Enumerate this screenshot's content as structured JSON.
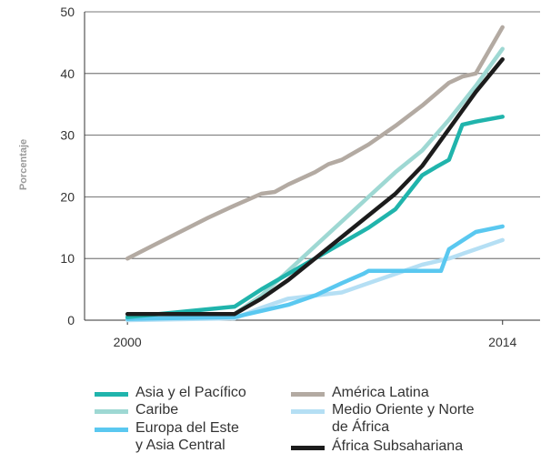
{
  "chart_data": {
    "type": "line",
    "title": "",
    "xlabel": "",
    "ylabel": "Porcentaje",
    "xlim": [
      1998.4,
      2015.4
    ],
    "ylim": [
      0,
      50
    ],
    "yticks": [
      0,
      10,
      20,
      30,
      40,
      50
    ],
    "xtick_labels": [
      {
        "x": 2000,
        "label": "2000"
      },
      {
        "x": 2014,
        "label": "2014"
      }
    ],
    "grid": "horizontal",
    "legend_position": "bottom",
    "series": [
      {
        "name": "Asia y el Pacífico",
        "color": "#20b4ac",
        "x": [
          2000,
          2004,
          2005,
          2006,
          2007,
          2008,
          2009,
          2010,
          2011,
          2011.5,
          2012,
          2012.5,
          2013,
          2014
        ],
        "y": [
          0.5,
          2.2,
          5.0,
          7.5,
          10.0,
          12.5,
          15.0,
          18.0,
          23.5,
          24.8,
          26.0,
          31.7,
          32.2,
          33.0
        ]
      },
      {
        "name": "Caribe",
        "color": "#9ed8d3",
        "x": [
          2000,
          2004,
          2005,
          2006,
          2007,
          2008,
          2009,
          2010,
          2011,
          2012,
          2013,
          2014
        ],
        "y": [
          0.2,
          1.0,
          4.0,
          8.0,
          12.0,
          16.0,
          20.0,
          24.0,
          27.5,
          32.5,
          38.0,
          44.0
        ]
      },
      {
        "name": "Europa del Este\n  y Asia Central",
        "color": "#5ac8f0",
        "x": [
          2000,
          2004,
          2005,
          2006,
          2007,
          2008,
          2008.8,
          2009,
          2010,
          2011,
          2011.7,
          2012,
          2013,
          2014
        ],
        "y": [
          0.2,
          0.5,
          1.5,
          2.5,
          4.0,
          6.0,
          7.5,
          8.0,
          8.0,
          8.0,
          8.0,
          11.5,
          14.3,
          15.2
        ]
      },
      {
        "name": "América Latina",
        "color": "#b3aaa2",
        "x": [
          2000,
          2001,
          2002,
          2003,
          2004,
          2005,
          2005.5,
          2006,
          2007,
          2007.5,
          2008,
          2009,
          2010,
          2011,
          2012,
          2012.5,
          2013,
          2014
        ],
        "y": [
          10.0,
          12.2,
          14.4,
          16.6,
          18.6,
          20.5,
          20.8,
          22.0,
          24.0,
          25.3,
          26.0,
          28.5,
          31.5,
          34.8,
          38.5,
          39.5,
          40.0,
          47.5
        ]
      },
      {
        "name": "Medio Oriente y Norte\nde África",
        "color": "#b5dff4",
        "x": [
          2000,
          2004,
          2005,
          2006,
          2007,
          2008,
          2009,
          2010,
          2011,
          2012,
          2013,
          2014
        ],
        "y": [
          0.0,
          0.3,
          2.0,
          3.5,
          4.0,
          4.5,
          6.0,
          7.5,
          9.0,
          10.0,
          11.5,
          13.0
        ]
      },
      {
        "name": "África Subsahariana",
        "color": "#1c1c1c",
        "x": [
          2000,
          2001,
          2002,
          2003,
          2004,
          2005,
          2006,
          2007,
          2008,
          2009,
          2010,
          2011,
          2012,
          2013,
          2014
        ],
        "y": [
          1.0,
          1.0,
          1.0,
          1.0,
          1.0,
          3.5,
          6.5,
          10.0,
          13.5,
          17.0,
          20.5,
          25.0,
          31.0,
          37.0,
          42.3
        ]
      }
    ]
  }
}
